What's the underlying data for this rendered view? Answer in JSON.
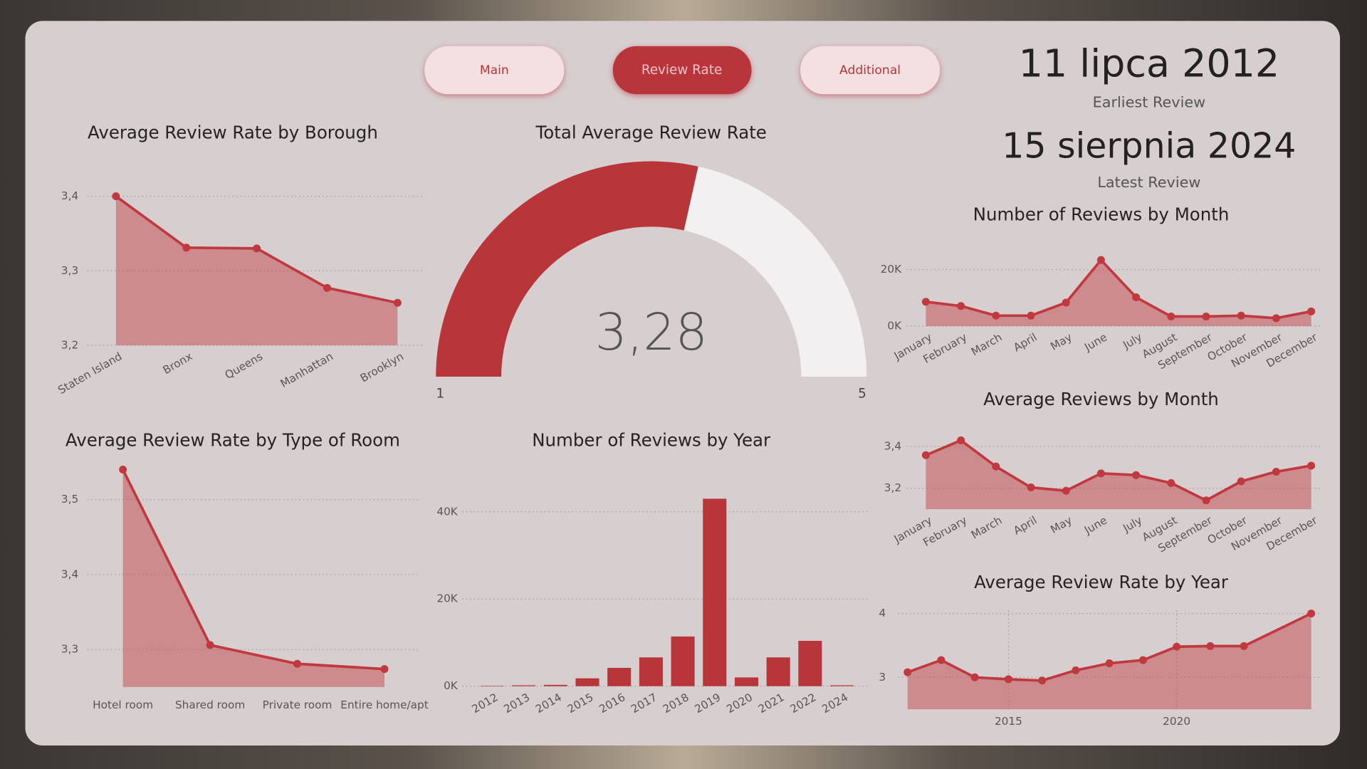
{
  "buttons": [
    {
      "label": "Main"
    },
    {
      "label": "Review Rate"
    },
    {
      "label": "Additional"
    }
  ],
  "dates": [
    {
      "value": "11 lipca 2012",
      "label": "Earliest Review"
    },
    {
      "value": "15 sierpnia 2024",
      "label": "Latest Review"
    }
  ],
  "chart_data": [
    {
      "type": "line",
      "title": "Average Review Rate by Borough",
      "categories": [
        "Staten Island",
        "Bronx",
        "Queens",
        "Manhattan",
        "Brooklyn"
      ],
      "values": [
        3.4,
        3.331,
        3.33,
        3.277,
        3.257
      ],
      "color": "#c0393e",
      "area": true,
      "ylim": [
        3.2,
        3.42
      ],
      "yticks": [
        {
          "value": 3.2,
          "label": "3,2"
        },
        {
          "value": 3.3,
          "label": "3,3"
        },
        {
          "value": 3.4,
          "label": "3,4"
        }
      ],
      "grid": true
    },
    {
      "type": "gauge",
      "title": "Total Average Review Rate",
      "value": 3.28,
      "value_label": "3,28",
      "min": 1,
      "max": 5,
      "color": "#b8353a",
      "track_color": "#f2f0f0"
    },
    {
      "type": "line",
      "title": "Number of Reviews by Month",
      "categories": [
        "January",
        "February",
        "March",
        "April",
        "May",
        "June",
        "July",
        "August",
        "September",
        "October",
        "November",
        "December"
      ],
      "values": [
        8600,
        7100,
        3700,
        3700,
        8300,
        23400,
        10200,
        3400,
        3400,
        3700,
        2800,
        5200
      ],
      "color": "#c0393e",
      "area": true,
      "ylim": [
        0,
        25000
      ],
      "yticks": [
        {
          "value": 0,
          "label": "0K"
        },
        {
          "value": 20000,
          "label": "20K"
        }
      ],
      "grid": true
    },
    {
      "type": "line",
      "title": "Average Review Rate by Type of Room",
      "categories": [
        "Hotel room",
        "Shared room",
        "Private room",
        "Entire home/apt"
      ],
      "values": [
        3.54,
        3.306,
        3.281,
        3.274
      ],
      "color": "#c0393e",
      "area": true,
      "ylim": [
        3.25,
        3.55
      ],
      "yticks": [
        {
          "value": 3.3,
          "label": "3,3"
        },
        {
          "value": 3.4,
          "label": "3,4"
        },
        {
          "value": 3.5,
          "label": "3,5"
        }
      ],
      "grid": true
    },
    {
      "type": "bar",
      "title": "Number of Reviews by Year",
      "categories": [
        "2012",
        "2013",
        "2014",
        "2015",
        "2016",
        "2017",
        "2018",
        "2019",
        "2020",
        "2021",
        "2022",
        "2024"
      ],
      "values": [
        100,
        200,
        300,
        1800,
        4200,
        6600,
        11400,
        43000,
        2000,
        6600,
        10400,
        200
      ],
      "color": "#b8353a",
      "ylim": [
        0,
        45000
      ],
      "yticks": [
        {
          "value": 0,
          "label": "0K"
        },
        {
          "value": 20000,
          "label": "20K"
        },
        {
          "value": 40000,
          "label": "40K"
        }
      ],
      "grid": true
    },
    {
      "type": "line",
      "title": "Average Reviews by Month",
      "categories": [
        "January",
        "February",
        "March",
        "April",
        "May",
        "June",
        "July",
        "August",
        "September",
        "October",
        "November",
        "December"
      ],
      "values": [
        3.358,
        3.429,
        3.304,
        3.204,
        3.188,
        3.271,
        3.263,
        3.225,
        3.142,
        3.233,
        3.279,
        3.308
      ],
      "color": "#c0393e",
      "area": true,
      "ylim": [
        3.1,
        3.45
      ],
      "yticks": [
        {
          "value": 3.2,
          "label": "3,2"
        },
        {
          "value": 3.4,
          "label": "3,4"
        }
      ],
      "grid": true
    },
    {
      "type": "line",
      "title": "Average Review Rate by Year",
      "x": [
        2012,
        2013,
        2014,
        2015,
        2016,
        2017,
        2018,
        2019,
        2020,
        2021,
        2022,
        2024
      ],
      "values": [
        3.08,
        3.27,
        3.0,
        2.97,
        2.95,
        3.11,
        3.22,
        3.27,
        3.48,
        3.49,
        3.49,
        4.0
      ],
      "color": "#c0393e",
      "area": true,
      "xlim": [
        2012,
        2024
      ],
      "xticks": [
        2015,
        2020
      ],
      "ylim": [
        2.5,
        4.05
      ],
      "yticks": [
        3,
        4
      ],
      "grid": true,
      "xgrid": true
    }
  ]
}
